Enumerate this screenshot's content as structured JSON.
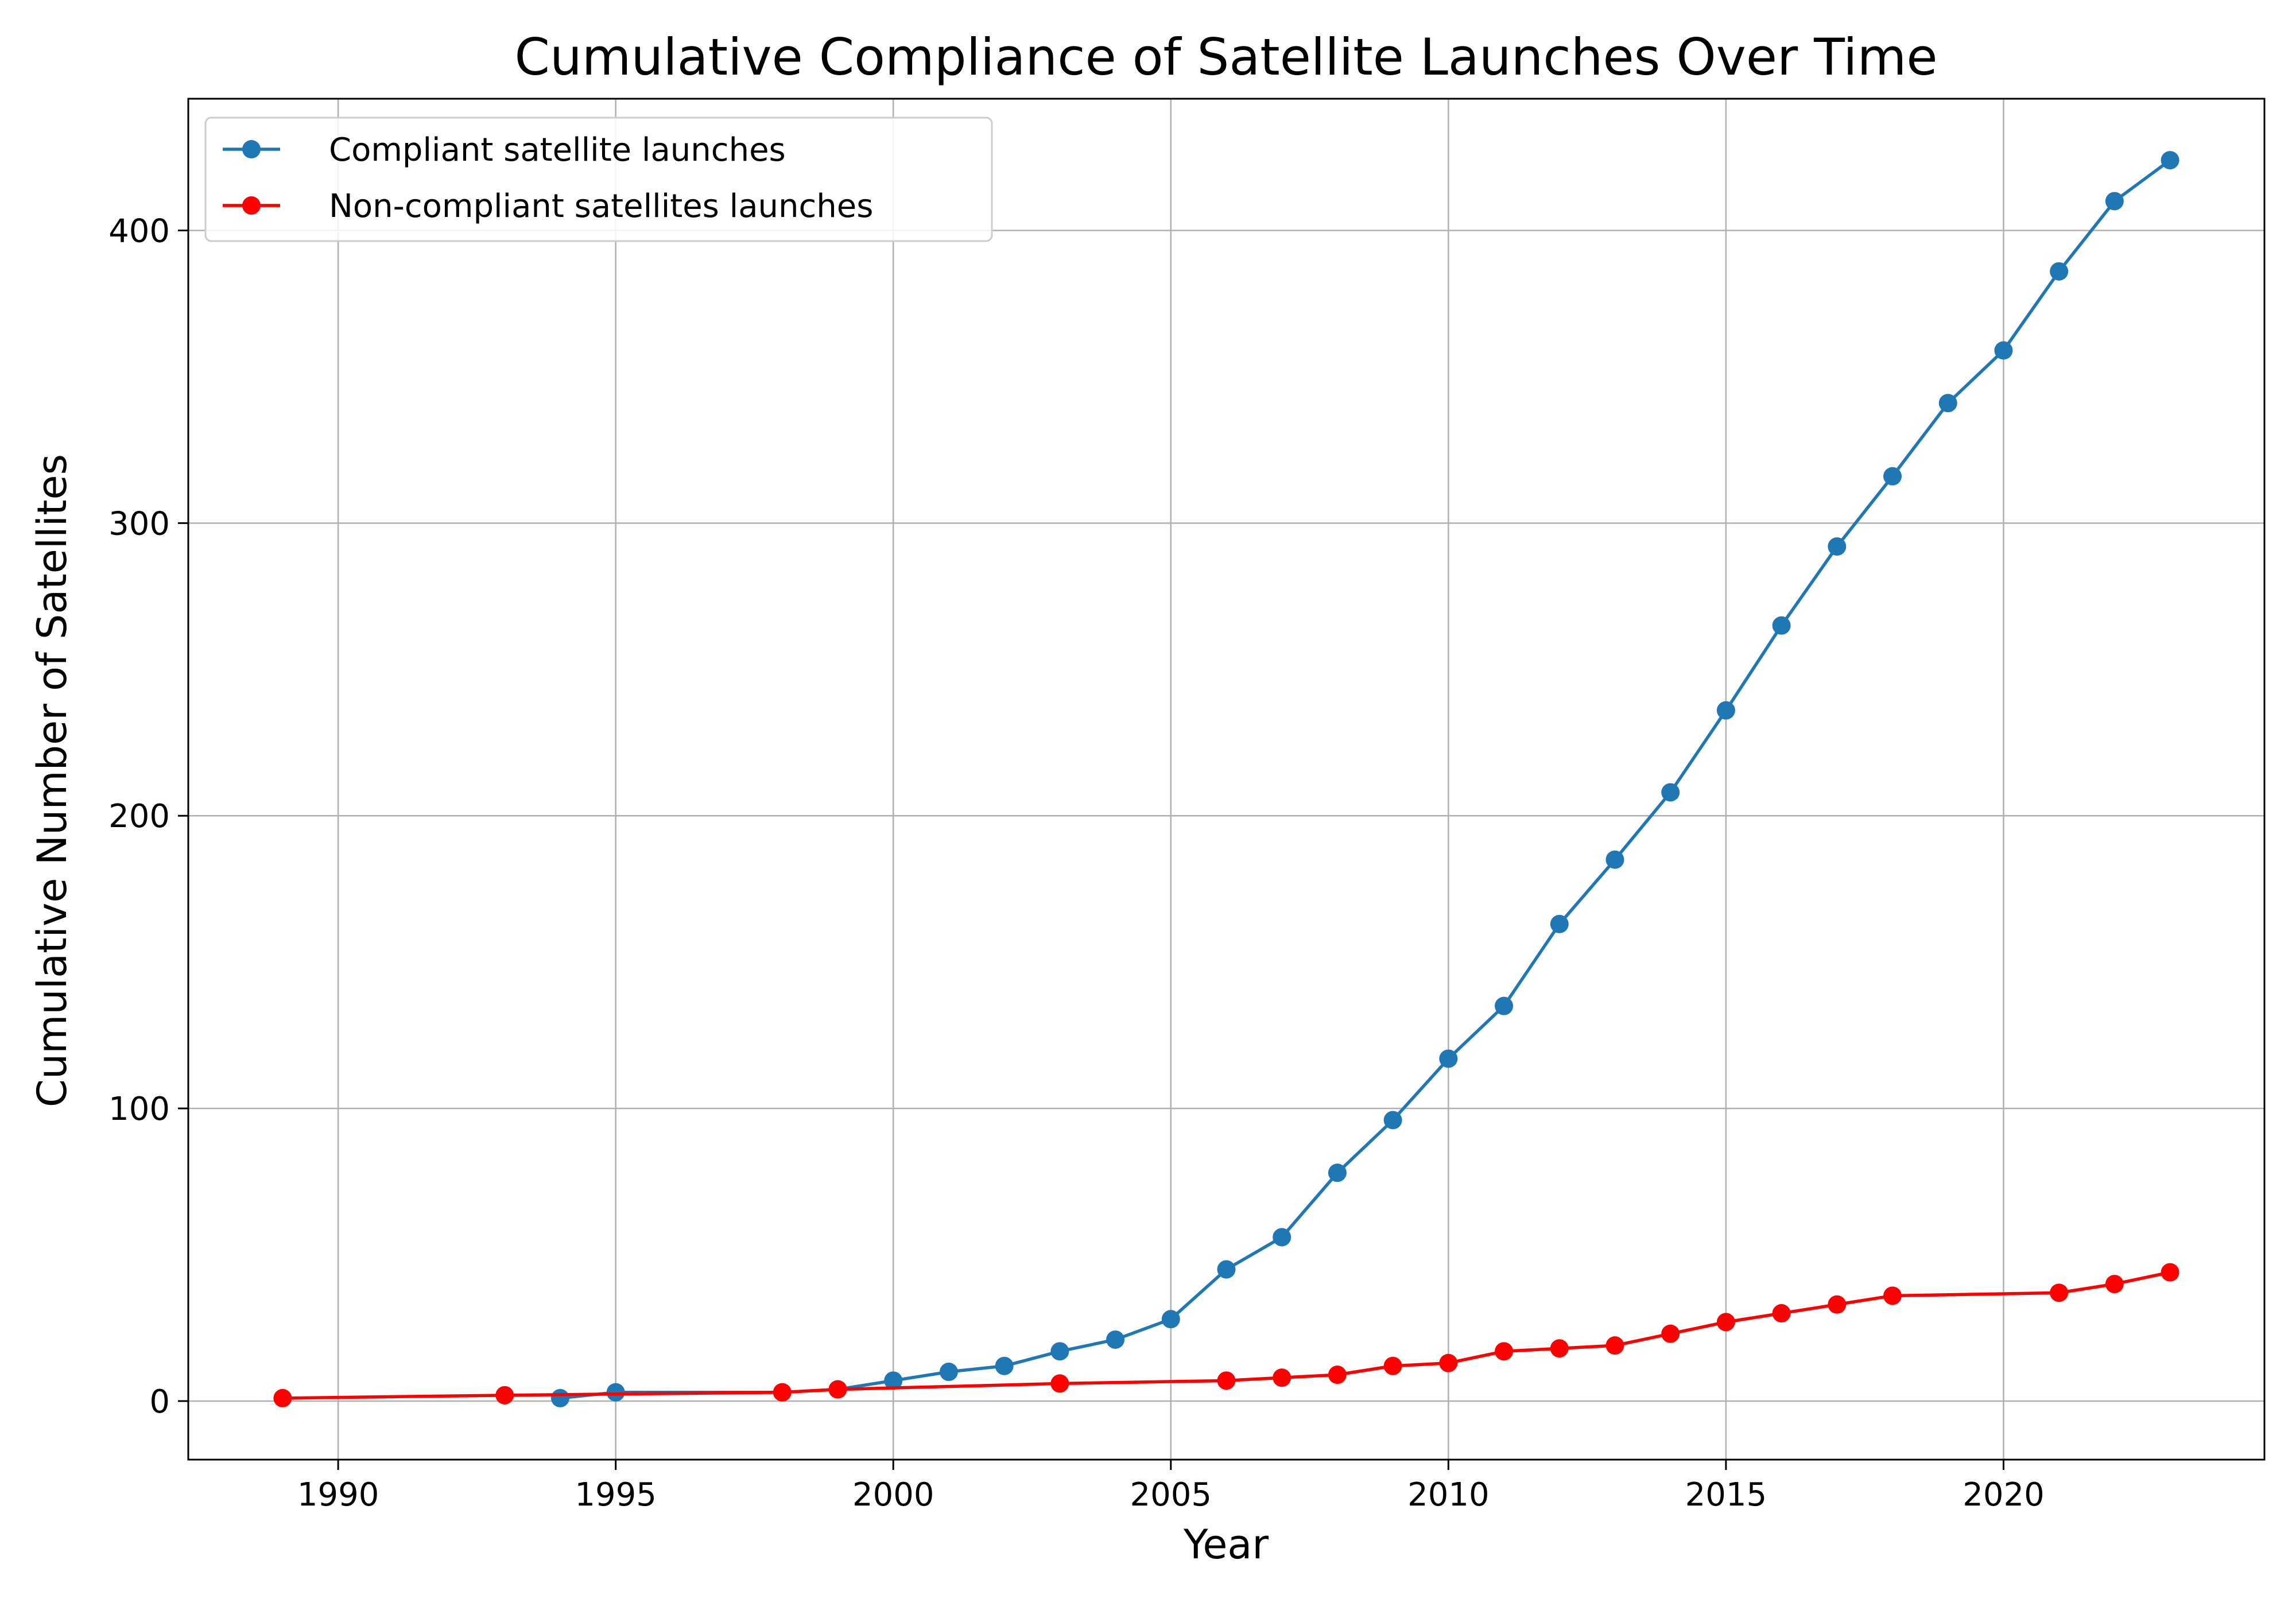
{
  "chart_data": {
    "type": "line",
    "title": "Cumulative Compliance of Satellite Launches Over Time",
    "xlabel": "Year",
    "ylabel": "Cumulative Number of Satellites",
    "xlim": [
      1987.3,
      2024.7
    ],
    "ylim": [
      -20,
      445
    ],
    "xticks": [
      1990,
      1995,
      2000,
      2005,
      2010,
      2015,
      2020
    ],
    "yticks": [
      0,
      100,
      200,
      300,
      400
    ],
    "grid": true,
    "legend_position": "top-left",
    "series": [
      {
        "name": "Compliant satellite launches",
        "color": "#1f77b4",
        "points": [
          [
            1994,
            1
          ],
          [
            1995,
            3
          ],
          [
            1998,
            3
          ],
          [
            1999,
            4
          ],
          [
            2000,
            7
          ],
          [
            2001,
            10
          ],
          [
            2002,
            12
          ],
          [
            2003,
            17
          ],
          [
            2004,
            21
          ],
          [
            2005,
            28
          ],
          [
            2006,
            45
          ],
          [
            2007,
            56
          ],
          [
            2008,
            78
          ],
          [
            2009,
            96
          ],
          [
            2010,
            117
          ],
          [
            2011,
            135
          ],
          [
            2012,
            163
          ],
          [
            2013,
            185
          ],
          [
            2014,
            208
          ],
          [
            2015,
            236
          ],
          [
            2016,
            265
          ],
          [
            2017,
            292
          ],
          [
            2018,
            316
          ],
          [
            2019,
            341
          ],
          [
            2020,
            359
          ],
          [
            2021,
            386
          ],
          [
            2022,
            410
          ],
          [
            2023,
            424
          ]
        ]
      },
      {
        "name": "Non-compliant satellites launches",
        "color": "#ff0000",
        "points": [
          [
            1989,
            1
          ],
          [
            1993,
            2
          ],
          [
            1998,
            3
          ],
          [
            1999,
            4
          ],
          [
            2003,
            6
          ],
          [
            2006,
            7
          ],
          [
            2007,
            8
          ],
          [
            2008,
            9
          ],
          [
            2009,
            12
          ],
          [
            2010,
            13
          ],
          [
            2011,
            17
          ],
          [
            2012,
            18
          ],
          [
            2013,
            19
          ],
          [
            2014,
            23
          ],
          [
            2015,
            27
          ],
          [
            2016,
            30
          ],
          [
            2017,
            33
          ],
          [
            2018,
            36
          ],
          [
            2021,
            37
          ],
          [
            2022,
            40
          ],
          [
            2023,
            44
          ]
        ]
      }
    ]
  }
}
